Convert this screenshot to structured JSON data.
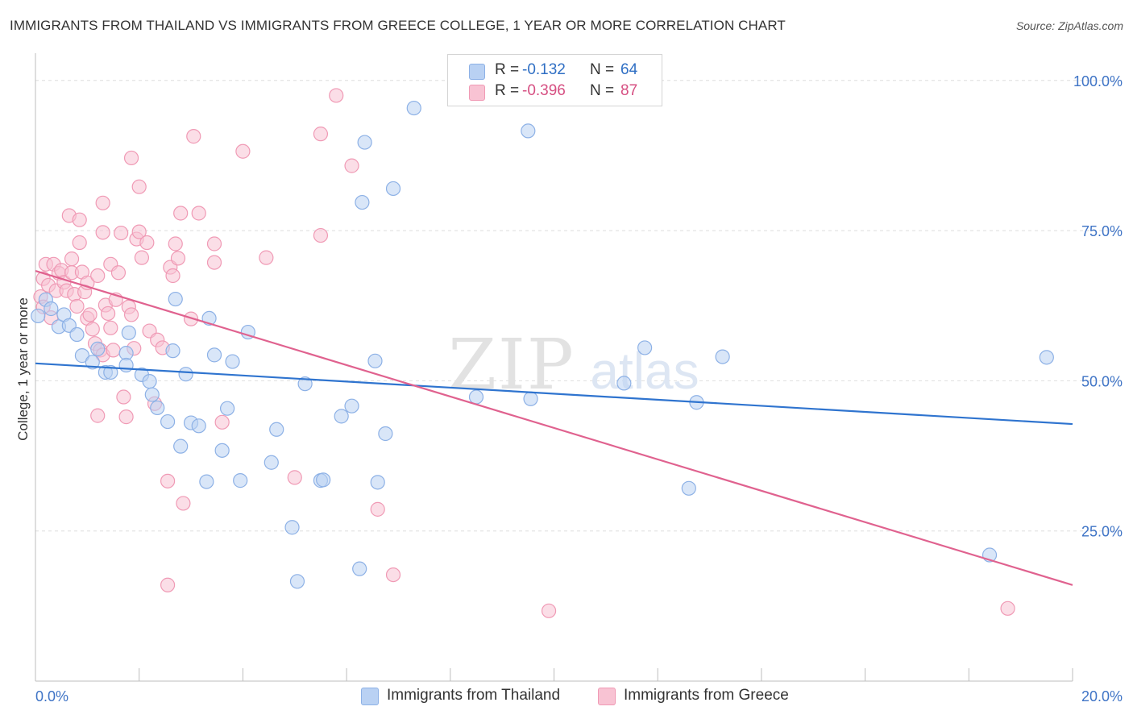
{
  "title": "IMMIGRANTS FROM THAILAND VS IMMIGRANTS FROM GREECE COLLEGE, 1 YEAR OR MORE CORRELATION CHART",
  "source": "Source: ZipAtlas.com",
  "watermark": {
    "zip": "ZIP",
    "atlas": "atlas"
  },
  "colors": {
    "thailand_fill": "#b9d1f3",
    "thailand_stroke": "#8db1e6",
    "thailand_line": "#2f74cf",
    "thailand_text": "#2f6fc4",
    "greece_fill": "#f8c3d3",
    "greece_stroke": "#f09ab5",
    "greece_line": "#e0628f",
    "greece_text": "#d64f82",
    "axis_tick": "#3f74c6"
  },
  "legend": {
    "rows": [
      {
        "r_label": "R =",
        "r_value": "-0.132",
        "n_label": "N =",
        "n_value": "64"
      },
      {
        "r_label": "R =",
        "r_value": "-0.396",
        "n_label": "N =",
        "n_value": "87"
      }
    ]
  },
  "bottom_legend": {
    "thailand": "Immigrants from Thailand",
    "greece": "Immigrants from Greece"
  },
  "chart_data": {
    "type": "scatter",
    "title": "IMMIGRANTS FROM THAILAND VS IMMIGRANTS FROM GREECE COLLEGE, 1 YEAR OR MORE CORRELATION CHART",
    "xlabel": "",
    "ylabel": "College, 1 year or more",
    "xlim": [
      0,
      20
    ],
    "ylim": [
      0,
      104
    ],
    "x_tick_labels": [
      "0.0%",
      "20.0%"
    ],
    "y_ticks": [
      25,
      50,
      75,
      100
    ],
    "y_tick_labels": [
      "25.0%",
      "50.0%",
      "75.0%",
      "100.0%"
    ],
    "grid": "horizontal dashed",
    "series": [
      {
        "name": "Immigrants from Thailand",
        "r": -0.132,
        "n": 64,
        "trend": {
          "x": [
            0,
            20
          ],
          "y": [
            52.9,
            42.8
          ]
        },
        "points": [
          [
            0.05,
            60.8
          ],
          [
            0.2,
            63.5
          ],
          [
            0.3,
            62.0
          ],
          [
            0.45,
            59.0
          ],
          [
            0.55,
            61.0
          ],
          [
            0.65,
            59.2
          ],
          [
            0.8,
            57.7
          ],
          [
            0.9,
            54.2
          ],
          [
            1.1,
            53.1
          ],
          [
            1.2,
            55.3
          ],
          [
            1.35,
            51.4
          ],
          [
            1.45,
            51.4
          ],
          [
            1.75,
            54.6
          ],
          [
            1.8,
            58.0
          ],
          [
            1.75,
            52.6
          ],
          [
            2.05,
            51.0
          ],
          [
            2.2,
            49.9
          ],
          [
            2.25,
            47.7
          ],
          [
            2.35,
            45.5
          ],
          [
            2.55,
            43.2
          ],
          [
            2.65,
            55.0
          ],
          [
            2.7,
            63.6
          ],
          [
            2.8,
            39.1
          ],
          [
            2.9,
            51.1
          ],
          [
            3.0,
            43.0
          ],
          [
            3.15,
            42.5
          ],
          [
            3.3,
            33.2
          ],
          [
            3.35,
            60.4
          ],
          [
            3.45,
            54.3
          ],
          [
            3.6,
            38.4
          ],
          [
            3.7,
            45.4
          ],
          [
            3.8,
            53.2
          ],
          [
            3.95,
            33.4
          ],
          [
            4.1,
            58.1
          ],
          [
            4.55,
            36.4
          ],
          [
            4.65,
            41.9
          ],
          [
            4.95,
            25.6
          ],
          [
            5.05,
            16.6
          ],
          [
            5.2,
            49.5
          ],
          [
            5.5,
            33.4
          ],
          [
            5.55,
            33.5
          ],
          [
            5.9,
            44.1
          ],
          [
            6.1,
            45.8
          ],
          [
            6.25,
            18.7
          ],
          [
            6.3,
            79.7
          ],
          [
            6.35,
            89.7
          ],
          [
            6.55,
            53.3
          ],
          [
            6.6,
            33.1
          ],
          [
            6.75,
            41.2
          ],
          [
            6.9,
            82.0
          ],
          [
            7.3,
            95.4
          ],
          [
            8.5,
            47.3
          ],
          [
            9.5,
            91.6
          ],
          [
            9.55,
            47.0
          ],
          [
            11.35,
            49.6
          ],
          [
            11.75,
            55.5
          ],
          [
            12.6,
            32.1
          ],
          [
            12.75,
            46.4
          ],
          [
            13.25,
            54.0
          ],
          [
            18.4,
            21.0
          ],
          [
            19.5,
            53.9
          ]
        ]
      },
      {
        "name": "Immigrants from Greece",
        "r": -0.396,
        "n": 87,
        "trend": {
          "x": [
            0,
            20
          ],
          "y": [
            68.3,
            16.0
          ]
        },
        "points": [
          [
            0.1,
            64.0
          ],
          [
            0.15,
            67.0
          ],
          [
            0.15,
            62.3
          ],
          [
            0.2,
            69.4
          ],
          [
            0.25,
            65.9
          ],
          [
            0.3,
            60.5
          ],
          [
            0.35,
            69.4
          ],
          [
            0.4,
            65.0
          ],
          [
            0.45,
            67.9
          ],
          [
            0.5,
            68.4
          ],
          [
            0.55,
            66.4
          ],
          [
            0.6,
            65.0
          ],
          [
            0.65,
            77.5
          ],
          [
            0.7,
            70.3
          ],
          [
            0.7,
            68.0
          ],
          [
            0.75,
            64.4
          ],
          [
            0.8,
            62.4
          ],
          [
            0.85,
            73.0
          ],
          [
            0.85,
            76.8
          ],
          [
            0.9,
            68.1
          ],
          [
            0.95,
            64.8
          ],
          [
            1.0,
            66.3
          ],
          [
            1.0,
            60.4
          ],
          [
            1.05,
            61.0
          ],
          [
            1.1,
            58.6
          ],
          [
            1.15,
            56.2
          ],
          [
            1.2,
            67.5
          ],
          [
            1.2,
            44.2
          ],
          [
            1.25,
            55.1
          ],
          [
            1.3,
            54.3
          ],
          [
            1.3,
            74.7
          ],
          [
            1.3,
            79.6
          ],
          [
            1.35,
            62.6
          ],
          [
            1.4,
            61.2
          ],
          [
            1.45,
            58.8
          ],
          [
            1.45,
            69.4
          ],
          [
            1.5,
            55.1
          ],
          [
            1.55,
            63.5
          ],
          [
            1.6,
            68.0
          ],
          [
            1.65,
            74.6
          ],
          [
            1.7,
            47.3
          ],
          [
            1.75,
            44.0
          ],
          [
            1.8,
            62.3
          ],
          [
            1.85,
            87.1
          ],
          [
            1.85,
            61.0
          ],
          [
            1.9,
            55.4
          ],
          [
            1.95,
            73.6
          ],
          [
            2.0,
            82.3
          ],
          [
            2.0,
            74.8
          ],
          [
            2.05,
            70.5
          ],
          [
            2.15,
            73.0
          ],
          [
            2.2,
            58.3
          ],
          [
            2.3,
            46.2
          ],
          [
            2.35,
            56.8
          ],
          [
            2.45,
            55.5
          ],
          [
            2.55,
            33.3
          ],
          [
            2.55,
            16.0
          ],
          [
            2.6,
            68.9
          ],
          [
            2.65,
            67.5
          ],
          [
            2.7,
            72.8
          ],
          [
            2.75,
            70.4
          ],
          [
            2.8,
            77.9
          ],
          [
            2.85,
            29.6
          ],
          [
            3.0,
            60.3
          ],
          [
            3.05,
            90.7
          ],
          [
            3.15,
            77.9
          ],
          [
            3.45,
            69.7
          ],
          [
            3.45,
            72.8
          ],
          [
            3.6,
            43.1
          ],
          [
            4.0,
            88.2
          ],
          [
            4.45,
            70.5
          ],
          [
            5.0,
            33.9
          ],
          [
            5.5,
            91.1
          ],
          [
            5.5,
            74.2
          ],
          [
            5.8,
            97.5
          ],
          [
            6.1,
            85.8
          ],
          [
            6.6,
            28.6
          ],
          [
            6.9,
            17.7
          ],
          [
            9.9,
            11.7
          ],
          [
            18.75,
            12.1
          ]
        ]
      }
    ]
  }
}
